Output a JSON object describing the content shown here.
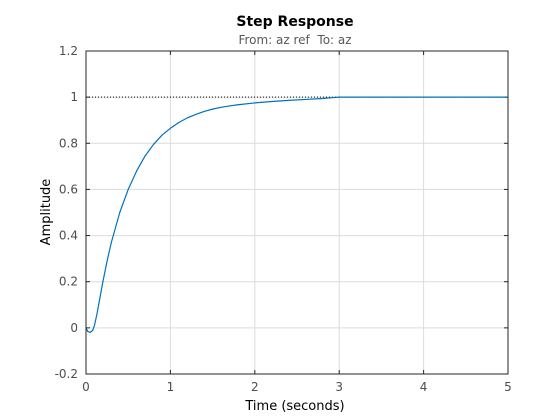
{
  "chart_data": {
    "type": "line",
    "title": "Step Response",
    "subtitle": "From: az ref  To: az",
    "xlabel": "Time (seconds)",
    "ylabel": "Amplitude",
    "xlim": [
      0,
      5
    ],
    "ylim": [
      -0.2,
      1.2
    ],
    "xticks": [
      "0",
      "1",
      "2",
      "3",
      "4",
      "5"
    ],
    "yticks": [
      "-0.2",
      "0",
      "0.2",
      "0.4",
      "0.6",
      "0.8",
      "1",
      "1.2"
    ],
    "grid": true,
    "reference_line": {
      "y": 1,
      "x_range": [
        0,
        5
      ],
      "style": "dotted"
    },
    "series": [
      {
        "color": "#0072bd",
        "x": [
          0,
          0.02,
          0.05,
          0.08,
          0.1,
          0.13,
          0.16,
          0.2,
          0.25,
          0.3,
          0.4,
          0.5,
          0.6,
          0.7,
          0.8,
          0.9,
          1.0,
          1.1,
          1.2,
          1.3,
          1.4,
          1.5,
          1.6,
          1.7,
          1.8,
          2.0,
          2.2,
          2.4,
          2.6,
          2.8,
          2.9,
          3.0,
          3.5,
          4.0,
          4.5,
          5.0
        ],
        "y": [
          0,
          -0.015,
          -0.02,
          -0.01,
          0.01,
          0.06,
          0.12,
          0.2,
          0.29,
          0.37,
          0.5,
          0.6,
          0.68,
          0.745,
          0.795,
          0.835,
          0.865,
          0.89,
          0.91,
          0.925,
          0.938,
          0.948,
          0.956,
          0.962,
          0.967,
          0.975,
          0.981,
          0.986,
          0.99,
          0.994,
          0.997,
          1.0,
          1.0,
          1.0,
          1.0,
          1.0
        ]
      }
    ]
  }
}
